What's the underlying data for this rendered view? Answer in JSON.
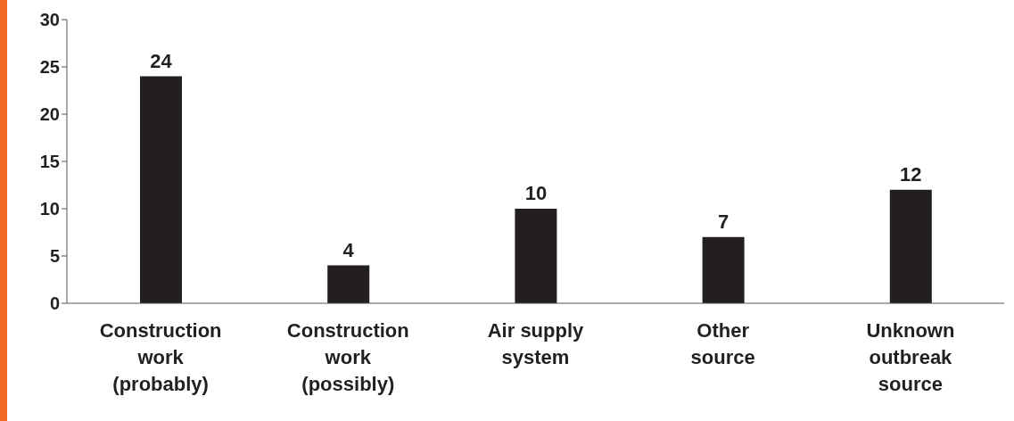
{
  "chart_data": {
    "type": "bar",
    "categories": [
      "Construction work (probably)",
      "Construction work (possibly)",
      "Air supply system",
      "Other source",
      "Unknown outbreak source"
    ],
    "values": [
      24,
      4,
      10,
      7,
      12
    ],
    "color": "#231f20",
    "ylim": [
      0,
      30
    ],
    "yticks": [
      0,
      5,
      10,
      15,
      20,
      25,
      30
    ],
    "grid": false,
    "legend": false,
    "data_labels": true
  }
}
